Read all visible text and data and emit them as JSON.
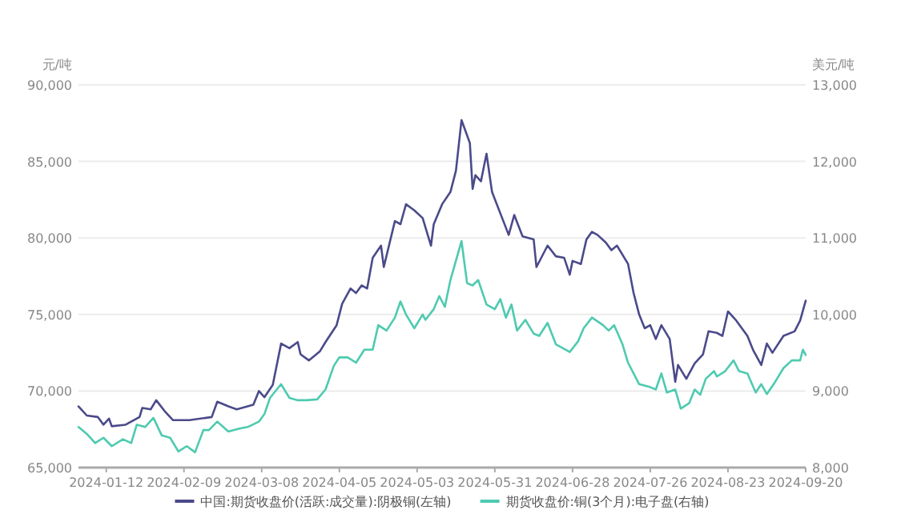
{
  "chart_data": {
    "type": "line",
    "ylabel": "元/吨",
    "y2label": "美元/吨",
    "grid": "y",
    "legend": "bottom",
    "xlim": [
      "2024-01-02",
      "2024-09-20"
    ],
    "xticks": [
      "2024-01-12",
      "2024-02-09",
      "2024-03-08",
      "2024-04-05",
      "2024-05-03",
      "2024-05-31",
      "2024-06-28",
      "2024-07-26",
      "2024-08-23",
      "2024-09-20"
    ],
    "ylim": [
      65000,
      90000
    ],
    "yticks": [
      {
        "value": 65000,
        "label": "65,000"
      },
      {
        "value": 70000,
        "label": "70,000"
      },
      {
        "value": 75000,
        "label": "75,000"
      },
      {
        "value": 80000,
        "label": "80,000"
      },
      {
        "value": 85000,
        "label": "85,000"
      },
      {
        "value": 90000,
        "label": "90,000"
      }
    ],
    "y2lim": [
      8000,
      13000
    ],
    "y2ticks": [
      {
        "value": 8000,
        "label": "8,000"
      },
      {
        "value": 9000,
        "label": "9,000"
      },
      {
        "value": 10000,
        "label": "10,000"
      },
      {
        "value": 11000,
        "label": "11,000"
      },
      {
        "value": 12000,
        "label": "12,000"
      },
      {
        "value": 13000,
        "label": "13,000"
      }
    ],
    "series": [
      {
        "name": "中国:期货收盘价(活跃:成交量):阴极铜(左轴)",
        "color": "#4b4a8a",
        "axis": "y",
        "x": [
          "2024-01-02",
          "2024-01-05",
          "2024-01-09",
          "2024-01-11",
          "2024-01-13",
          "2024-01-14",
          "2024-01-19",
          "2024-01-24",
          "2024-01-25",
          "2024-01-28",
          "2024-01-30",
          "2024-02-02",
          "2024-02-05",
          "2024-02-11",
          "2024-02-19",
          "2024-02-21",
          "2024-02-25",
          "2024-02-28",
          "2024-03-05",
          "2024-03-07",
          "2024-03-09",
          "2024-03-12",
          "2024-03-15",
          "2024-03-18",
          "2024-03-21",
          "2024-03-22",
          "2024-03-25",
          "2024-03-29",
          "2024-03-31",
          "2024-04-04",
          "2024-04-06",
          "2024-04-09",
          "2024-04-11",
          "2024-04-13",
          "2024-04-15",
          "2024-04-17",
          "2024-04-20",
          "2024-04-21",
          "2024-04-25",
          "2024-04-27",
          "2024-04-29",
          "2024-05-02",
          "2024-05-05",
          "2024-05-08",
          "2024-05-09",
          "2024-05-12",
          "2024-05-15",
          "2024-05-17",
          "2024-05-19",
          "2024-05-20",
          "2024-05-22",
          "2024-05-23",
          "2024-05-24",
          "2024-05-26",
          "2024-05-28",
          "2024-05-30",
          "2024-06-02",
          "2024-06-05",
          "2024-06-07",
          "2024-06-10",
          "2024-06-14",
          "2024-06-15",
          "2024-06-19",
          "2024-06-22",
          "2024-06-25",
          "2024-06-27",
          "2024-06-28",
          "2024-07-01",
          "2024-07-03",
          "2024-07-05",
          "2024-07-07",
          "2024-07-10",
          "2024-07-12",
          "2024-07-14",
          "2024-07-18",
          "2024-07-20",
          "2024-07-22",
          "2024-07-24",
          "2024-07-26",
          "2024-07-28",
          "2024-07-30",
          "2024-08-02",
          "2024-08-04",
          "2024-08-05",
          "2024-08-08",
          "2024-08-11",
          "2024-08-14",
          "2024-08-16",
          "2024-08-19",
          "2024-08-21",
          "2024-08-23",
          "2024-08-26",
          "2024-08-30",
          "2024-09-01",
          "2024-09-04",
          "2024-09-06",
          "2024-09-08",
          "2024-09-12",
          "2024-09-16",
          "2024-09-18",
          "2024-09-20"
        ],
        "values": [
          69000,
          68400,
          68300,
          67800,
          68200,
          67700,
          67800,
          68300,
          68900,
          68800,
          69400,
          68700,
          68100,
          68100,
          68300,
          69300,
          69000,
          68800,
          69100,
          70000,
          69600,
          70400,
          73100,
          72800,
          73200,
          72400,
          72000,
          72600,
          73200,
          74300,
          75700,
          76700,
          76400,
          76900,
          76700,
          78700,
          79500,
          78100,
          81100,
          80900,
          82200,
          81800,
          81300,
          79500,
          80900,
          82200,
          83000,
          84400,
          87700,
          87200,
          86200,
          83200,
          84100,
          83700,
          85500,
          83000,
          81600,
          80200,
          81500,
          80100,
          79900,
          78100,
          79500,
          78800,
          78700,
          77600,
          78500,
          78300,
          79900,
          80400,
          80200,
          79700,
          79200,
          79500,
          78300,
          76400,
          75000,
          74100,
          74300,
          73400,
          74300,
          73400,
          70600,
          71700,
          70800,
          71800,
          72400,
          73900,
          73800,
          73600,
          75200,
          74600,
          73600,
          72700,
          71700,
          73100,
          72500,
          73600,
          73900,
          74600,
          75900
        ]
      },
      {
        "name": "期货收盘价:铜(3个月):电子盘(右轴)",
        "color": "#4ecab0",
        "axis": "y2",
        "x": [
          "2024-01-02",
          "2024-01-05",
          "2024-01-08",
          "2024-01-11",
          "2024-01-14",
          "2024-01-18",
          "2024-01-21",
          "2024-01-23",
          "2024-01-26",
          "2024-01-29",
          "2024-02-01",
          "2024-02-04",
          "2024-02-07",
          "2024-02-10",
          "2024-02-13",
          "2024-02-16",
          "2024-02-18",
          "2024-02-21",
          "2024-02-25",
          "2024-02-29",
          "2024-03-03",
          "2024-03-07",
          "2024-03-09",
          "2024-03-11",
          "2024-03-15",
          "2024-03-18",
          "2024-03-21",
          "2024-03-24",
          "2024-03-28",
          "2024-03-31",
          "2024-04-03",
          "2024-04-05",
          "2024-04-08",
          "2024-04-11",
          "2024-04-14",
          "2024-04-17",
          "2024-04-19",
          "2024-04-22",
          "2024-04-25",
          "2024-04-27",
          "2024-04-29",
          "2024-05-02",
          "2024-05-05",
          "2024-05-06",
          "2024-05-09",
          "2024-05-11",
          "2024-05-13",
          "2024-05-15",
          "2024-05-19",
          "2024-05-21",
          "2024-05-23",
          "2024-05-25",
          "2024-05-28",
          "2024-05-31",
          "2024-06-02",
          "2024-06-04",
          "2024-06-06",
          "2024-06-08",
          "2024-06-11",
          "2024-06-14",
          "2024-06-16",
          "2024-06-19",
          "2024-06-22",
          "2024-06-27",
          "2024-06-30",
          "2024-07-02",
          "2024-07-05",
          "2024-07-09",
          "2024-07-11",
          "2024-07-13",
          "2024-07-16",
          "2024-07-18",
          "2024-07-22",
          "2024-07-26",
          "2024-07-28",
          "2024-07-30",
          "2024-08-01",
          "2024-08-04",
          "2024-08-06",
          "2024-08-09",
          "2024-08-11",
          "2024-08-13",
          "2024-08-15",
          "2024-08-18",
          "2024-08-19",
          "2024-08-22",
          "2024-08-25",
          "2024-08-27",
          "2024-08-30",
          "2024-09-02",
          "2024-09-04",
          "2024-09-06",
          "2024-09-09",
          "2024-09-12",
          "2024-09-15",
          "2024-09-18",
          "2024-09-19",
          "2024-09-20"
        ],
        "values": [
          8530,
          8440,
          8320,
          8390,
          8280,
          8370,
          8320,
          8560,
          8530,
          8650,
          8420,
          8390,
          8210,
          8280,
          8200,
          8490,
          8490,
          8600,
          8470,
          8510,
          8530,
          8600,
          8700,
          8910,
          9090,
          8910,
          8880,
          8880,
          8890,
          9020,
          9330,
          9440,
          9440,
          9370,
          9540,
          9540,
          9860,
          9790,
          9960,
          10170,
          10000,
          9820,
          10000,
          9930,
          10070,
          10240,
          10100,
          10450,
          10960,
          10410,
          10380,
          10450,
          10130,
          10070,
          10200,
          9960,
          10130,
          9790,
          9930,
          9750,
          9720,
          9890,
          9610,
          9510,
          9650,
          9820,
          9960,
          9860,
          9790,
          9860,
          9610,
          9370,
          9090,
          9050,
          9020,
          9230,
          8980,
          9020,
          8770,
          8840,
          9020,
          8950,
          9160,
          9260,
          9190,
          9260,
          9400,
          9260,
          9230,
          8980,
          9090,
          8960,
          9120,
          9300,
          9400,
          9400,
          9540,
          9470
        ]
      }
    ]
  }
}
